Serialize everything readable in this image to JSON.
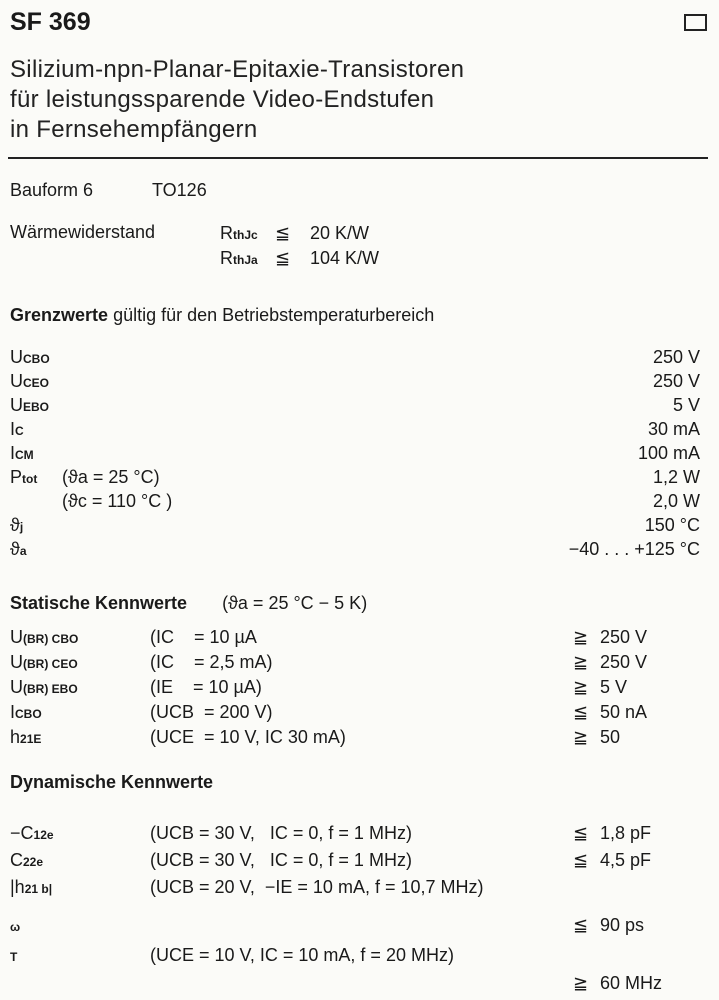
{
  "header": {
    "title": "SF 369",
    "subtitle_lines": [
      "Silizium-npn-Planar-Epitaxie-Transistoren",
      "für leistungssparende Video-Endstufen",
      "in Fernsehempfängern"
    ]
  },
  "package": {
    "label": "Bauform 6",
    "type": "TO126"
  },
  "thermal": {
    "label": "Wärmewiderstand",
    "rows": [
      {
        "sym": "R",
        "sub": "thJc",
        "rel": "≦",
        "value": "20 K/W"
      },
      {
        "sym": "R",
        "sub": "thJa",
        "rel": "≦",
        "value": "104 K/W"
      }
    ]
  },
  "limits": {
    "heading_bold": "Grenzwerte",
    "heading_rest": "gültig für den Betriebstemperaturbereich",
    "rows": [
      {
        "sym": "U",
        "sub": "CBO",
        "cond": "",
        "value": "250 V"
      },
      {
        "sym": "U",
        "sub": "CEO",
        "cond": "",
        "value": "250 V"
      },
      {
        "sym": "U",
        "sub": "EBO",
        "cond": "",
        "value": "5 V"
      },
      {
        "sym": "I",
        "sub": "C",
        "cond": "",
        "value": "30 mA"
      },
      {
        "sym": "I",
        "sub": "CM",
        "cond": "",
        "value": "100 mA"
      },
      {
        "sym": "P",
        "sub": "tot",
        "cond": "(ϑa = 25 °C)",
        "value": "1,2 W"
      },
      {
        "sym": "",
        "sub": "",
        "cond": "(ϑc = 110 °C )",
        "value": "2,0 W"
      },
      {
        "sym": "ϑ",
        "sub": "j",
        "cond": "",
        "value": "150 °C"
      },
      {
        "sym": "ϑ",
        "sub": "a",
        "cond": "",
        "value": "−40 . . . +125 °C"
      }
    ]
  },
  "static": {
    "heading": "Statische Kennwerte",
    "heading_cond": "(ϑa = 25 °C − 5 K)",
    "rows": [
      {
        "sym": "U",
        "sub": "(BR) CBO",
        "cond": "(IC    = 10 µA",
        "rel": "≧",
        "value": "250 V"
      },
      {
        "sym": "U",
        "sub": "(BR) CEO",
        "cond": "(IC    = 2,5 mA)",
        "rel": "≧",
        "value": "250 V"
      },
      {
        "sym": "U",
        "sub": "(BR) EBO",
        "cond": "(IE    = 10 µA)",
        "rel": "≧",
        "value": "5 V"
      },
      {
        "sym": "I",
        "sub": "CBO",
        "cond": "(UCB  = 200 V)",
        "rel": "≦",
        "value": "50 nA"
      },
      {
        "sym": "h",
        "sub": "21E",
        "cond": "(UCE  = 10 V, IC 30 mA)",
        "rel": "≧",
        "value": "50"
      }
    ]
  },
  "dynamic": {
    "heading": "Dynamische Kennwerte",
    "rows": [
      {
        "sym": "−C",
        "sub": "12e",
        "cond": "(UCB = 30 V,   IC = 0, f = 1 MHz)",
        "rel": "≦",
        "value": "1,8 pF"
      },
      {
        "sym": "C",
        "sub": "22e",
        "cond": "(UCB = 30 V,   IC = 0, f = 1 MHz)",
        "rel": "≦",
        "value": "4,5 pF"
      },
      {
        "sym": "|h",
        "sub": "21 b|",
        "cond": "(UCB = 20 V,  −IE = 10 mA, f = 10,7 MHz)",
        "rel": "",
        "value": ""
      },
      {
        "sym": "",
        "sub": "ω",
        "cond": "",
        "rel": "≦",
        "value": "90 ps"
      },
      {
        "sym": "",
        "sub": "T",
        "cond": "(UCE = 10 V, IC = 10 mA, f = 20 MHz)",
        "rel": "",
        "value": ""
      },
      {
        "sym": "",
        "sub": "",
        "cond": "",
        "rel": "≧",
        "value": "60 MHz"
      }
    ]
  }
}
